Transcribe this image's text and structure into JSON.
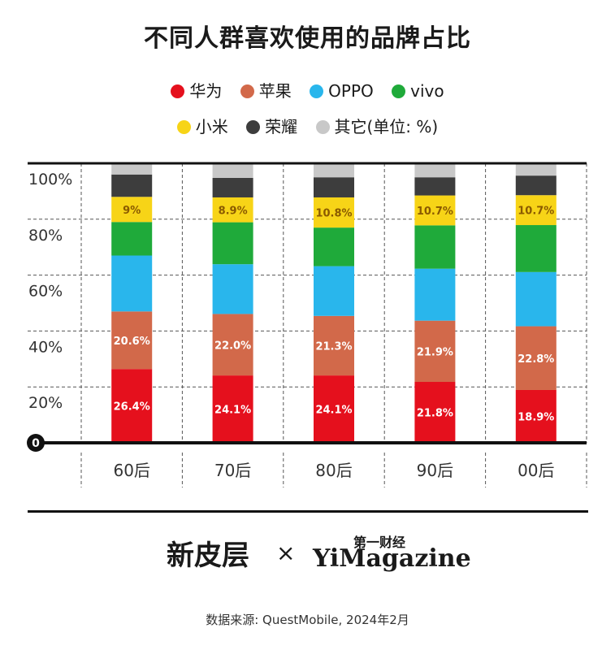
{
  "title": "不同人群喜欢使用的品牌占比",
  "legend": {
    "row1": [
      {
        "label": "华为",
        "color": "#e5101d"
      },
      {
        "label": "苹果",
        "color": "#d2694a"
      },
      {
        "label": "OPPO",
        "color": "#29b6ec"
      },
      {
        "label": "vivo",
        "color": "#1faa3a"
      }
    ],
    "row2": [
      {
        "label": "小米",
        "color": "#f7d417"
      },
      {
        "label": "荣耀",
        "color": "#3d3d3d"
      },
      {
        "label": "其它(单位: %)",
        "color": "#c8c8c8"
      }
    ]
  },
  "brand": {
    "left": "新皮层",
    "times": "×",
    "right_top": "第一财经",
    "right": "YiMagazine"
  },
  "source": "数据来源: QuestMobile, 2024年2月",
  "chart_data": {
    "type": "bar",
    "stacked": true,
    "categories": [
      "60后",
      "70后",
      "80后",
      "90后",
      "00后"
    ],
    "ylim": [
      0,
      100
    ],
    "yticks": [
      "0",
      "20%",
      "40%",
      "60%",
      "80%",
      "100%"
    ],
    "series": [
      {
        "name": "华为",
        "color": "#e5101d",
        "values": [
          26.4,
          24.1,
          24.1,
          21.8,
          18.9
        ],
        "labels": [
          "26.4%",
          "24.1%",
          "24.1%",
          "21.8%",
          "18.9%"
        ]
      },
      {
        "name": "苹果",
        "color": "#d2694a",
        "values": [
          20.6,
          22.0,
          21.3,
          21.9,
          22.8
        ],
        "labels": [
          "20.6%",
          "22.0%",
          "21.3%",
          "21.9%",
          "22.8%"
        ]
      },
      {
        "name": "OPPO",
        "color": "#29b6ec",
        "values": [
          20.0,
          17.8,
          17.8,
          18.6,
          19.4
        ],
        "labels": [
          "",
          "",
          "",
          "",
          ""
        ]
      },
      {
        "name": "vivo",
        "color": "#1faa3a",
        "values": [
          12.0,
          15.0,
          13.8,
          15.5,
          16.8
        ],
        "labels": [
          "",
          "",
          "",
          "",
          ""
        ]
      },
      {
        "name": "小米",
        "color": "#f7d417",
        "values": [
          9.0,
          8.9,
          10.8,
          10.7,
          10.7
        ],
        "labels": [
          "9%",
          "8.9%",
          "10.8%",
          "10.7%",
          "10.7%"
        ]
      },
      {
        "name": "荣耀",
        "color": "#3d3d3d",
        "values": [
          8.0,
          7.0,
          7.2,
          6.5,
          7.0
        ],
        "labels": [
          "",
          "",
          "",
          "",
          ""
        ]
      },
      {
        "name": "其它",
        "color": "#c8c8c8",
        "values": [
          4.0,
          5.2,
          5.0,
          5.0,
          4.4
        ],
        "labels": [
          "",
          "",
          "",
          "",
          ""
        ]
      }
    ]
  }
}
